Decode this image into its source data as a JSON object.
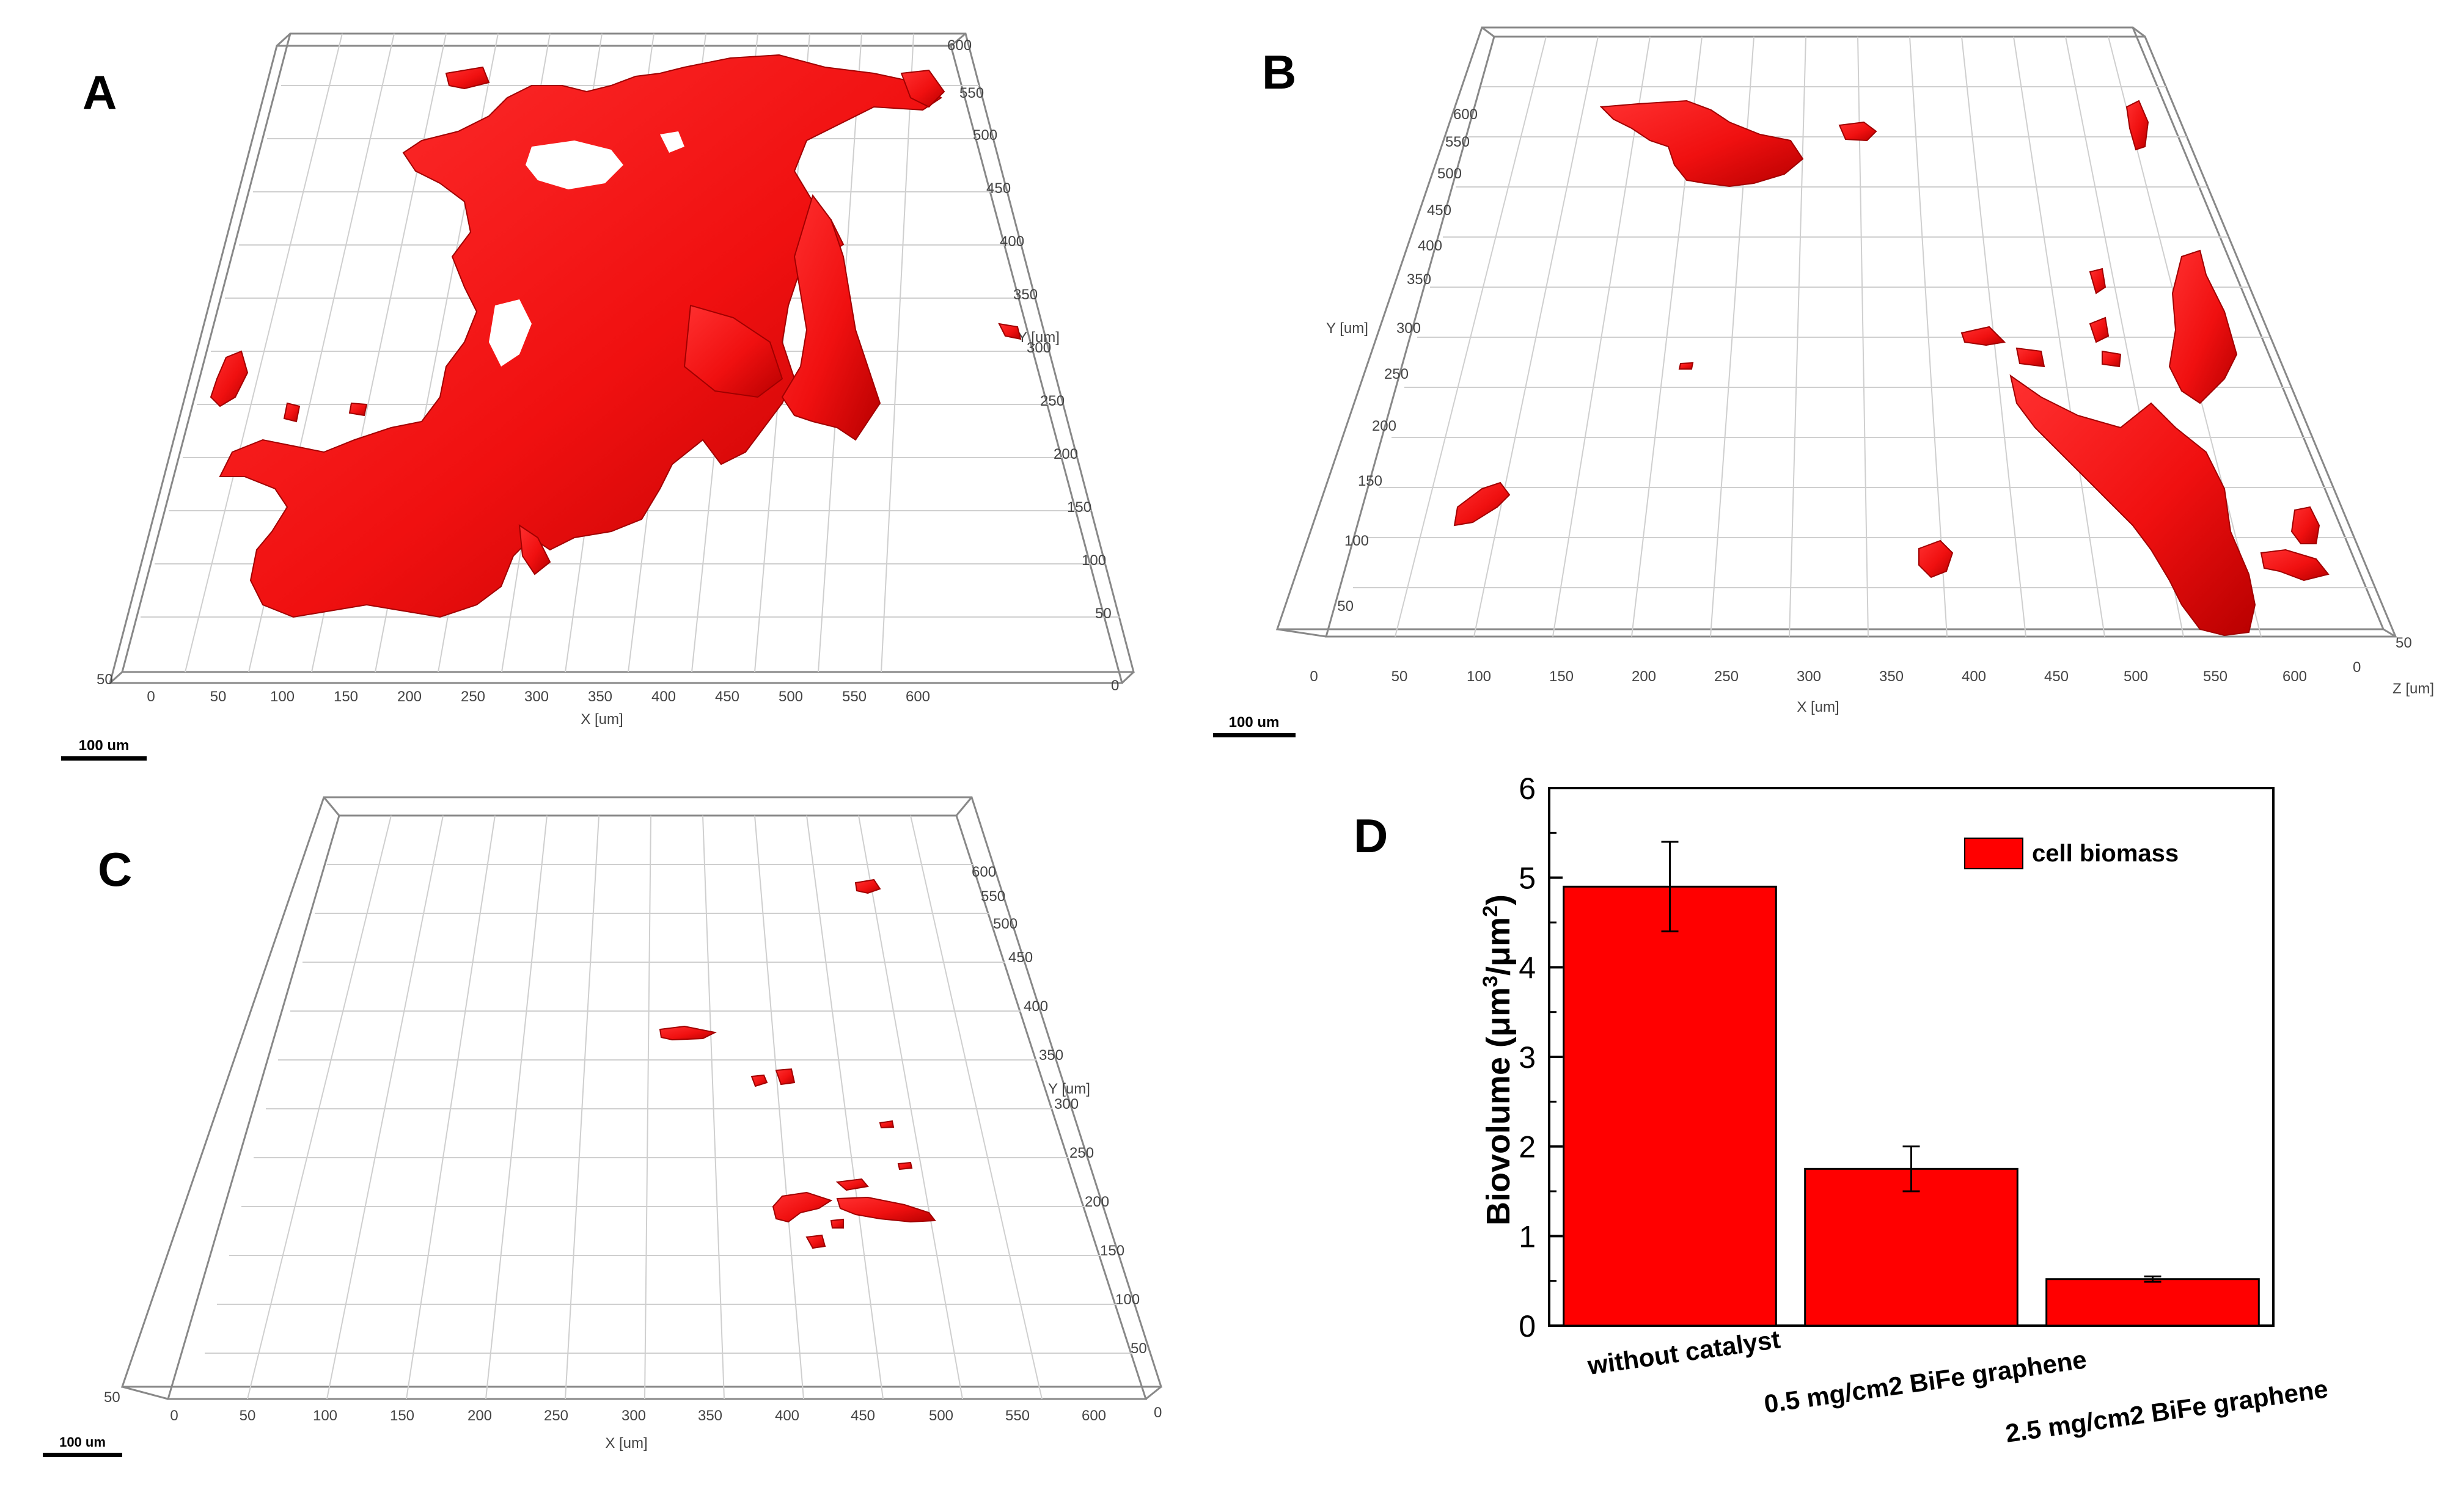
{
  "panel_labels": [
    "A",
    "B",
    "C",
    "D"
  ],
  "scale_bar_label": "100 um",
  "panels_3d": {
    "A": {
      "x_label": "X [um]",
      "y_label": "Y [um]"
    },
    "B": {
      "x_label": "X [um]",
      "y_label": "Y [um]",
      "z_label": "Z [um]"
    },
    "C": {
      "x_label": "X [um]",
      "y_label": "Y [um]"
    }
  },
  "axis_3d": {
    "x_ticks": [
      "0",
      "50",
      "100",
      "150",
      "200",
      "250",
      "300",
      "350",
      "400",
      "450",
      "500",
      "550",
      "600"
    ],
    "y_ticks": [
      "50",
      "100",
      "150",
      "200",
      "250",
      "300",
      "350",
      "400",
      "450",
      "500",
      "550",
      "600"
    ],
    "z_ticks": [
      "0",
      "50"
    ]
  },
  "colors": {
    "biomass": "#ff1a1a",
    "biomass_dark": "#c80000",
    "bar": "#ff0000"
  },
  "chart_data": {
    "type": "bar",
    "categories": [
      "without catalyst",
      "0.5 mg/cm2 BiFe graphene",
      "2.5 mg/cm2 BiFe graphene"
    ],
    "series": [
      {
        "name": "cell biomass",
        "values": [
          4.9,
          1.75,
          0.52
        ],
        "errors": [
          0.5,
          0.25,
          0.03
        ]
      }
    ],
    "ylabel": "Biovolume (μm³/μm²)",
    "ylabel_parts": {
      "main": "Biovolume (",
      "unit1": "μm",
      "sup1": "3",
      "slash": "/μm",
      "sup2": "2",
      "close": ")"
    },
    "ylim": [
      0,
      6
    ],
    "yticks": [
      "0",
      "1",
      "2",
      "3",
      "4",
      "5",
      "6"
    ],
    "legend": "top-right"
  }
}
